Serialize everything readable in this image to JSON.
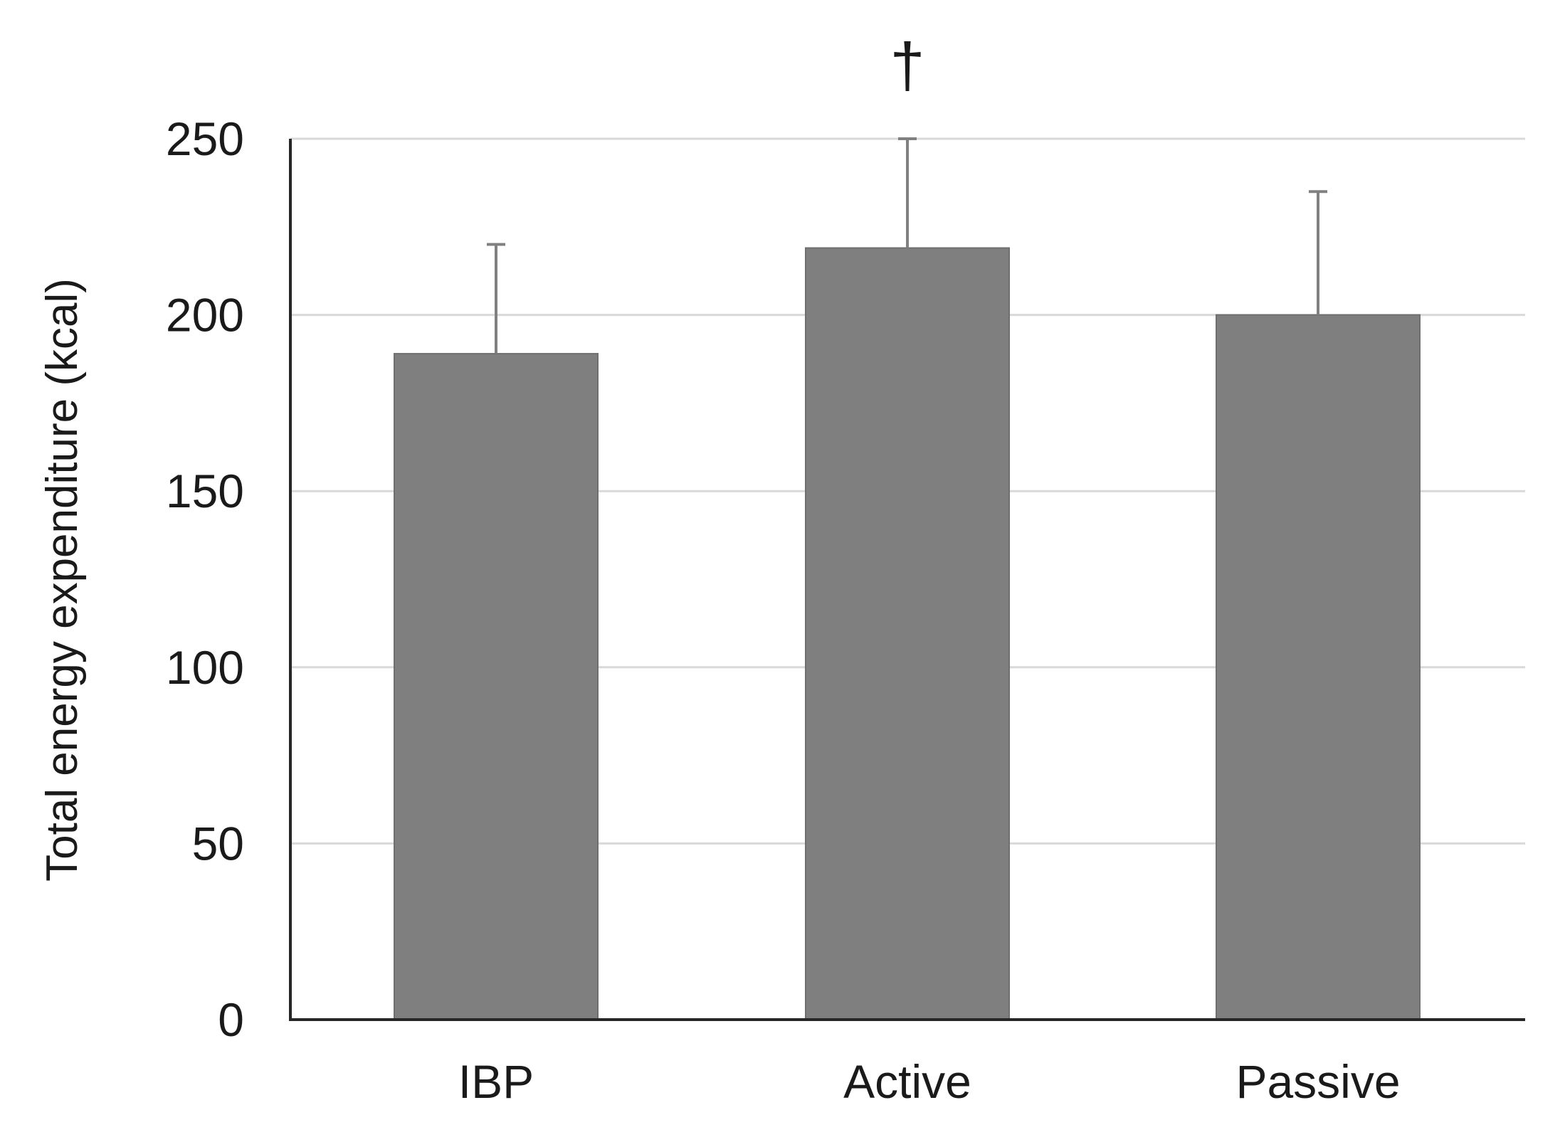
{
  "chart_data": {
    "type": "bar",
    "title": "",
    "xlabel": "",
    "ylabel": "Total energy expenditure (kcal)",
    "categories": [
      "IBP",
      "Active",
      "Passive"
    ],
    "values": [
      189,
      219,
      200
    ],
    "error_upper": [
      220,
      250,
      235
    ],
    "annotations": [
      {
        "category": "Active",
        "text": "†"
      }
    ],
    "ylim": [
      0,
      250
    ],
    "yticks": [
      0,
      50,
      100,
      150,
      200,
      250
    ],
    "ytick_labels": [
      "0",
      "50",
      "100",
      "150",
      "200",
      "250"
    ],
    "grid": "horizontal",
    "colors": {
      "bar": "#7f7f7f",
      "bar_edge": "#6f6f6f",
      "error_bar": "#808080",
      "grid": "#d9d9d9",
      "axis": "#262626",
      "text": "#1a1a1a"
    }
  }
}
